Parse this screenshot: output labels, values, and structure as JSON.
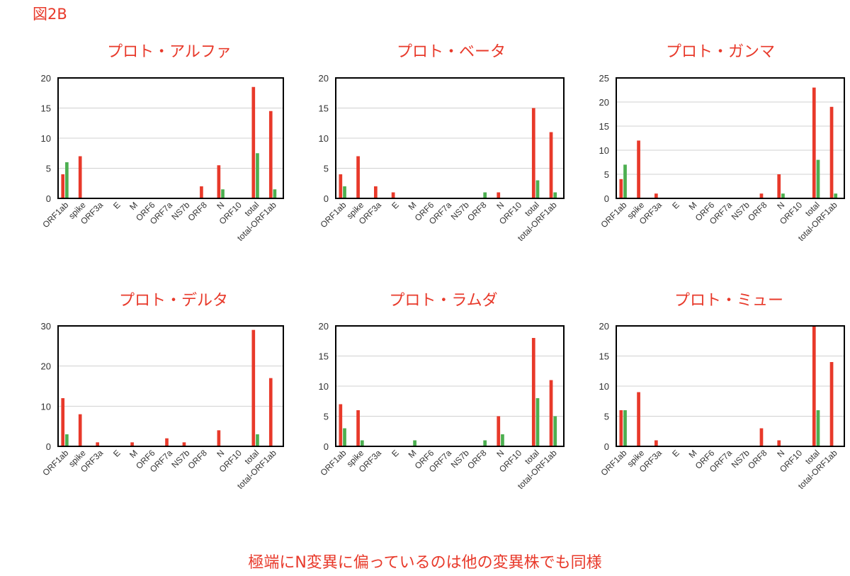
{
  "figure_label": "図2B",
  "footer_note": "極端にN変異に偏っているのは他の変異株でも同様",
  "colors": {
    "series_red": "#e8392a",
    "series_green": "#4caf50",
    "grid": "#d0d0d0",
    "title": "#e8392a"
  },
  "chart_data": [
    {
      "type": "bar",
      "title": "プロト・アルファ",
      "categories": [
        "ORF1ab",
        "spike",
        "ORF3a",
        "E",
        "M",
        "ORF6",
        "ORF7a",
        "NS7b",
        "ORF8",
        "N",
        "ORF10",
        "total",
        "total-ORF1ab"
      ],
      "series": [
        {
          "color": "#e8392a",
          "values": [
            4,
            7,
            0,
            0,
            0,
            0,
            0,
            0,
            2,
            5.5,
            0,
            18.5,
            14.5
          ]
        },
        {
          "color": "#4caf50",
          "values": [
            6,
            0,
            0,
            0,
            0,
            0,
            0,
            0,
            0,
            1.5,
            0,
            7.5,
            1.5
          ]
        }
      ],
      "ylim": [
        0,
        20
      ],
      "yticks": [
        0,
        5,
        10,
        15,
        20
      ],
      "grid": true
    },
    {
      "type": "bar",
      "title": "プロト・ベータ",
      "categories": [
        "ORF1ab",
        "spike",
        "ORF3a",
        "E",
        "M",
        "ORF6",
        "ORF7a",
        "NS7b",
        "ORF8",
        "N",
        "ORF10",
        "total",
        "total-ORF1ab"
      ],
      "series": [
        {
          "color": "#e8392a",
          "values": [
            4,
            7,
            2,
            1,
            0,
            0,
            0,
            0,
            0,
            1,
            0,
            15,
            11
          ]
        },
        {
          "color": "#4caf50",
          "values": [
            2,
            0,
            0,
            0,
            0,
            0,
            0,
            0,
            1,
            0,
            0,
            3,
            1
          ]
        }
      ],
      "ylim": [
        0,
        20
      ],
      "yticks": [
        0,
        5,
        10,
        15,
        20
      ],
      "grid": true
    },
    {
      "type": "bar",
      "title": "プロト・ガンマ",
      "categories": [
        "ORF1ab",
        "spike",
        "ORF3a",
        "E",
        "M",
        "ORF6",
        "ORF7a",
        "NS7b",
        "ORF8",
        "N",
        "ORF10",
        "total",
        "total-ORF1ab"
      ],
      "series": [
        {
          "color": "#e8392a",
          "values": [
            4,
            12,
            1,
            0,
            0,
            0,
            0,
            0,
            1,
            5,
            0,
            23,
            19
          ]
        },
        {
          "color": "#4caf50",
          "values": [
            7,
            0,
            0,
            0,
            0,
            0,
            0,
            0,
            0,
            1,
            0,
            8,
            1
          ]
        }
      ],
      "ylim": [
        0,
        25
      ],
      "yticks": [
        0,
        5,
        10,
        15,
        20,
        25
      ],
      "grid": true
    },
    {
      "type": "bar",
      "title": "プロト・デルタ",
      "categories": [
        "ORF1ab",
        "spike",
        "ORF3a",
        "E",
        "M",
        "ORF6",
        "ORF7a",
        "NS7b",
        "ORF8",
        "N",
        "ORF10",
        "total",
        "total-ORF1ab"
      ],
      "series": [
        {
          "color": "#e8392a",
          "values": [
            12,
            8,
            1,
            0,
            1,
            0,
            2,
            1,
            0,
            4,
            0,
            29,
            17
          ]
        },
        {
          "color": "#4caf50",
          "values": [
            3,
            0,
            0,
            0,
            0,
            0,
            0,
            0,
            0,
            0,
            0,
            3,
            0
          ]
        }
      ],
      "ylim": [
        0,
        30
      ],
      "yticks": [
        0,
        10,
        20,
        30
      ],
      "grid": true
    },
    {
      "type": "bar",
      "title": "プロト・ラムダ",
      "categories": [
        "ORF1ab",
        "spike",
        "ORF3a",
        "E",
        "M",
        "ORF6",
        "ORF7a",
        "NS7b",
        "ORF8",
        "N",
        "ORF10",
        "total",
        "total-ORF1ab"
      ],
      "series": [
        {
          "color": "#e8392a",
          "values": [
            7,
            6,
            0,
            0,
            0,
            0,
            0,
            0,
            0,
            5,
            0,
            18,
            11
          ]
        },
        {
          "color": "#4caf50",
          "values": [
            3,
            1,
            0,
            0,
            1,
            0,
            0,
            0,
            1,
            2,
            0,
            8,
            5
          ]
        }
      ],
      "ylim": [
        0,
        20
      ],
      "yticks": [
        0,
        5,
        10,
        15,
        20
      ],
      "grid": true
    },
    {
      "type": "bar",
      "title": "プロト・ミュー",
      "categories": [
        "ORF1ab",
        "spike",
        "ORF3a",
        "E",
        "M",
        "ORF6",
        "ORF7a",
        "NS7b",
        "ORF8",
        "N",
        "ORF10",
        "total",
        "total-ORF1ab"
      ],
      "series": [
        {
          "color": "#e8392a",
          "values": [
            6,
            9,
            1,
            0,
            0,
            0,
            0,
            0,
            3,
            1,
            0,
            20,
            14
          ]
        },
        {
          "color": "#4caf50",
          "values": [
            6,
            0,
            0,
            0,
            0,
            0,
            0,
            0,
            0,
            0,
            0,
            6,
            0
          ]
        }
      ],
      "ylim": [
        0,
        20
      ],
      "yticks": [
        0,
        5,
        10,
        15,
        20
      ],
      "grid": true
    }
  ]
}
